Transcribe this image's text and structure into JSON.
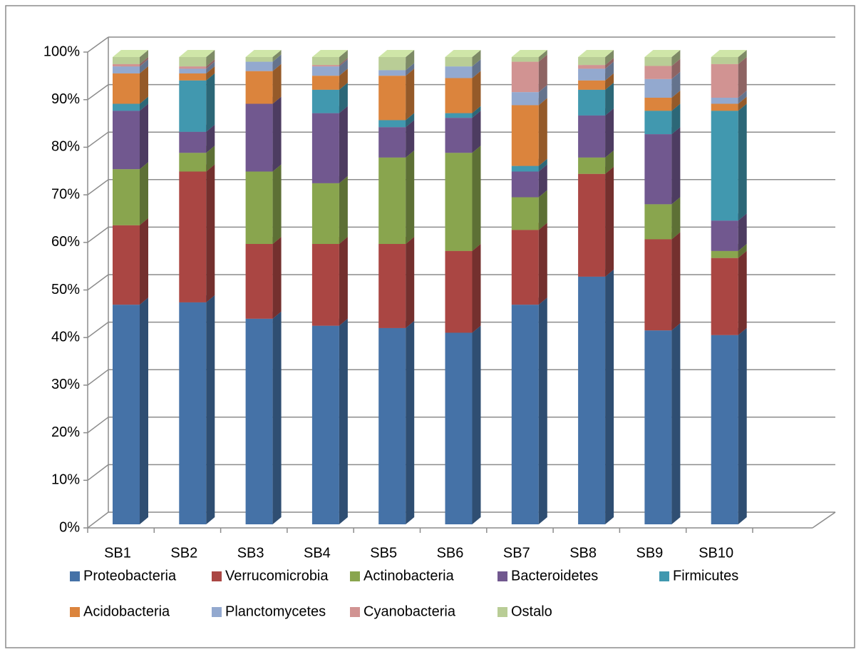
{
  "chart_data": {
    "type": "bar",
    "stacked": true,
    "three_d": true,
    "categories": [
      "SB1",
      "SB2",
      "SB3",
      "SB4",
      "SB5",
      "SB6",
      "SB7",
      "SB8",
      "SB9",
      "SB10"
    ],
    "series": [
      {
        "name": "Proteobacteria",
        "color": "#4572a7",
        "values": [
          47,
          47.5,
          44,
          42.5,
          42,
          41,
          47,
          53,
          41.5,
          40.5
        ]
      },
      {
        "name": "Verrucomicrobia",
        "color": "#aa4643",
        "values": [
          17,
          28,
          16,
          17.5,
          18,
          17.5,
          16,
          22,
          19.5,
          16.5
        ]
      },
      {
        "name": "Actinobacteria",
        "color": "#89a54e",
        "values": [
          12,
          4,
          15.5,
          13,
          18.5,
          21,
          7,
          3.5,
          7.5,
          1.5
        ]
      },
      {
        "name": "Bacteroidetes",
        "color": "#71588f",
        "values": [
          12.5,
          4.5,
          14.5,
          15,
          6.5,
          7.5,
          5.5,
          9,
          15,
          6.5
        ]
      },
      {
        "name": "Firmicutes",
        "color": "#4198af",
        "values": [
          1.5,
          11,
          0,
          5,
          1.5,
          1,
          1.2,
          5.5,
          5,
          23.5
        ]
      },
      {
        "name": "Acidobacteria",
        "color": "#db843d",
        "values": [
          6.5,
          1.5,
          7,
          3,
          9.5,
          7.5,
          13,
          2,
          2.8,
          1.5
        ]
      },
      {
        "name": "Planctomycetes",
        "color": "#93a9cf",
        "values": [
          1.5,
          1,
          2,
          2,
          1.2,
          2.5,
          2.8,
          2.5,
          4,
          1.3
        ]
      },
      {
        "name": "Cyanobacteria",
        "color": "#d19392",
        "values": [
          0.5,
          0.5,
          0,
          0.3,
          0,
          0,
          6.5,
          0.8,
          2.8,
          7.2
        ]
      },
      {
        "name": "Ostalo",
        "color": "#b9cd96",
        "values": [
          1.5,
          2,
          1,
          1.7,
          2.8,
          2,
          1,
          1.7,
          1.9,
          1.5
        ]
      }
    ],
    "ylim": [
      0,
      100
    ],
    "yticks": [
      {
        "value": 0,
        "label": "0%"
      },
      {
        "value": 10,
        "label": "10%"
      },
      {
        "value": 20,
        "label": "20%"
      },
      {
        "value": 30,
        "label": "30%"
      },
      {
        "value": 40,
        "label": "40%"
      },
      {
        "value": 50,
        "label": "50%"
      },
      {
        "value": 60,
        "label": "60%"
      },
      {
        "value": 70,
        "label": "70%"
      },
      {
        "value": 80,
        "label": "80%"
      },
      {
        "value": 90,
        "label": "90%"
      },
      {
        "value": 100,
        "label": "100%"
      }
    ],
    "grid": true,
    "legend": "bottom"
  }
}
